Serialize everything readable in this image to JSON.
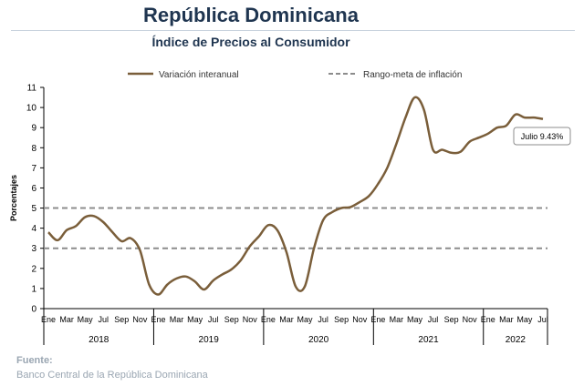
{
  "header": {
    "title": "República Dominicana",
    "subtitle": "Índice de Precios al Consumidor"
  },
  "source": {
    "label": "Fuente:",
    "text": "Banco Central de la República Dominicana"
  },
  "colors": {
    "series": "#7a5e3a",
    "target": "#8c8c8c",
    "axis": "#000000",
    "title": "#1f3550",
    "source": "#9aa6b2"
  },
  "chart_data": {
    "type": "line",
    "title": "Índice de Precios al Consumidor",
    "ylabel": "Porcentajes",
    "xlabel": "",
    "ylim": [
      0,
      11
    ],
    "yticks": [
      0,
      1,
      2,
      3,
      4,
      5,
      6,
      7,
      8,
      9,
      10,
      11
    ],
    "grid": false,
    "legend": {
      "placement": "top",
      "entries": [
        {
          "name": "Variación interanual",
          "style": "solid"
        },
        {
          "name": "Rango-meta de inflación",
          "style": "dashed"
        }
      ]
    },
    "month_labels": [
      "Ene",
      "Mar",
      "May",
      "Jul",
      "Sep",
      "Nov",
      "Ene",
      "Mar",
      "May",
      "Jul",
      "Sep",
      "Nov",
      "Ene",
      "Mar",
      "May",
      "Jul",
      "Sep",
      "Nov",
      "Ene",
      "Mar",
      "May",
      "Jul",
      "Sep",
      "Nov",
      "Ene",
      "Mar",
      "May",
      "Jul"
    ],
    "years": [
      {
        "label": "2018",
        "start": "2018-01",
        "months": 12
      },
      {
        "label": "2019",
        "start": "2019-01",
        "months": 12
      },
      {
        "label": "2020",
        "start": "2020-01",
        "months": 12
      },
      {
        "label": "2021",
        "start": "2021-01",
        "months": 12
      },
      {
        "label": "2022",
        "start": "2022-01",
        "months": 7
      }
    ],
    "x": [
      "2018-01",
      "2018-02",
      "2018-03",
      "2018-04",
      "2018-05",
      "2018-06",
      "2018-07",
      "2018-08",
      "2018-09",
      "2018-10",
      "2018-11",
      "2018-12",
      "2019-01",
      "2019-02",
      "2019-03",
      "2019-04",
      "2019-05",
      "2019-06",
      "2019-07",
      "2019-08",
      "2019-09",
      "2019-10",
      "2019-11",
      "2019-12",
      "2020-01",
      "2020-02",
      "2020-03",
      "2020-04",
      "2020-05",
      "2020-06",
      "2020-07",
      "2020-08",
      "2020-09",
      "2020-10",
      "2020-11",
      "2020-12",
      "2021-01",
      "2021-02",
      "2021-03",
      "2021-04",
      "2021-05",
      "2021-06",
      "2021-07",
      "2021-08",
      "2021-09",
      "2021-10",
      "2021-11",
      "2021-12",
      "2022-01",
      "2022-02",
      "2022-03",
      "2022-04",
      "2022-05",
      "2022-06",
      "2022-07"
    ],
    "series": [
      {
        "name": "Variación interanual",
        "values": [
          3.8,
          3.4,
          3.9,
          4.1,
          4.55,
          4.6,
          4.3,
          3.8,
          3.35,
          3.5,
          2.9,
          1.2,
          0.7,
          1.2,
          1.5,
          1.6,
          1.35,
          0.95,
          1.4,
          1.7,
          1.95,
          2.4,
          3.1,
          3.6,
          4.15,
          3.9,
          2.8,
          1.1,
          1.1,
          3.0,
          4.4,
          4.8,
          5.0,
          5.05,
          5.3,
          5.6,
          6.2,
          7.0,
          8.2,
          9.5,
          10.5,
          9.9,
          7.9,
          7.9,
          7.75,
          7.8,
          8.3,
          8.5,
          8.7,
          9.0,
          9.1,
          9.65,
          9.5,
          9.5,
          9.43
        ]
      },
      {
        "name": "Rango-meta de inflación",
        "lines": [
          3,
          5
        ]
      }
    ],
    "annotations": [
      {
        "text": "Julio 9.43%",
        "x": "2022-07",
        "y": 9.43
      }
    ]
  }
}
